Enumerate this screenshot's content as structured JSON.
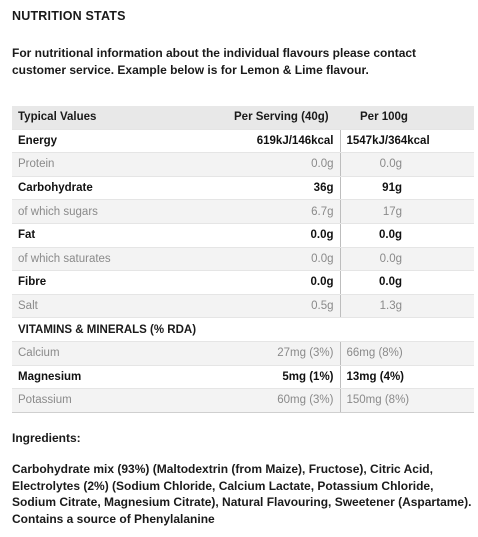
{
  "title": "NUTRITION STATS",
  "intro": "For nutritional information about the individual flavours please contact customer service. Example below is for Lemon & Lime flavour.",
  "table": {
    "headers": [
      "Typical Values",
      "Per Serving (40g)",
      "Per 100g"
    ],
    "rows": [
      {
        "label": "Energy",
        "serving": "619kJ/146kcal",
        "per100": "1547kJ/364kcal",
        "style": "bold"
      },
      {
        "label": "Protein",
        "serving": "0.0g",
        "per100": "0.0g",
        "style": "light"
      },
      {
        "label": "Carbohydrate",
        "serving": "36g",
        "per100": "91g",
        "style": "bold"
      },
      {
        "label": "of which sugars",
        "serving": "6.7g",
        "per100": "17g",
        "style": "light"
      },
      {
        "label": "Fat",
        "serving": "0.0g",
        "per100": "0.0g",
        "style": "bold"
      },
      {
        "label": "of which saturates",
        "serving": "0.0g",
        "per100": "0.0g",
        "style": "light"
      },
      {
        "label": "Fibre",
        "serving": "0.0g",
        "per100": "0.0g",
        "style": "bold"
      },
      {
        "label": "Salt",
        "serving": "0.5g",
        "per100": "1.3g",
        "style": "light"
      }
    ],
    "section_label": "VITAMINS & MINERALS (% RDA)",
    "vitamins": [
      {
        "label": "Calcium",
        "serving": "27mg (3%)",
        "per100": "66mg (8%)",
        "style": "light"
      },
      {
        "label": "Magnesium",
        "serving": "5mg (1%)",
        "per100": "13mg (4%)",
        "style": "bold"
      },
      {
        "label": "Potassium",
        "serving": "60mg (3%)",
        "per100": "150mg (8%)",
        "style": "light"
      }
    ]
  },
  "ingredients": {
    "heading": "Ingredients:",
    "text": "Carbohydrate mix (93%) (Maltodextrin (from Maize), Fructose), Citric Acid, Electrolytes (2%) (Sodium Chloride, Calcium Lactate, Potassium Chloride, Sodium Citrate, Magnesium Citrate), Natural Flavouring, Sweetener (Aspartame). Contains a source of Phenylalanine"
  }
}
